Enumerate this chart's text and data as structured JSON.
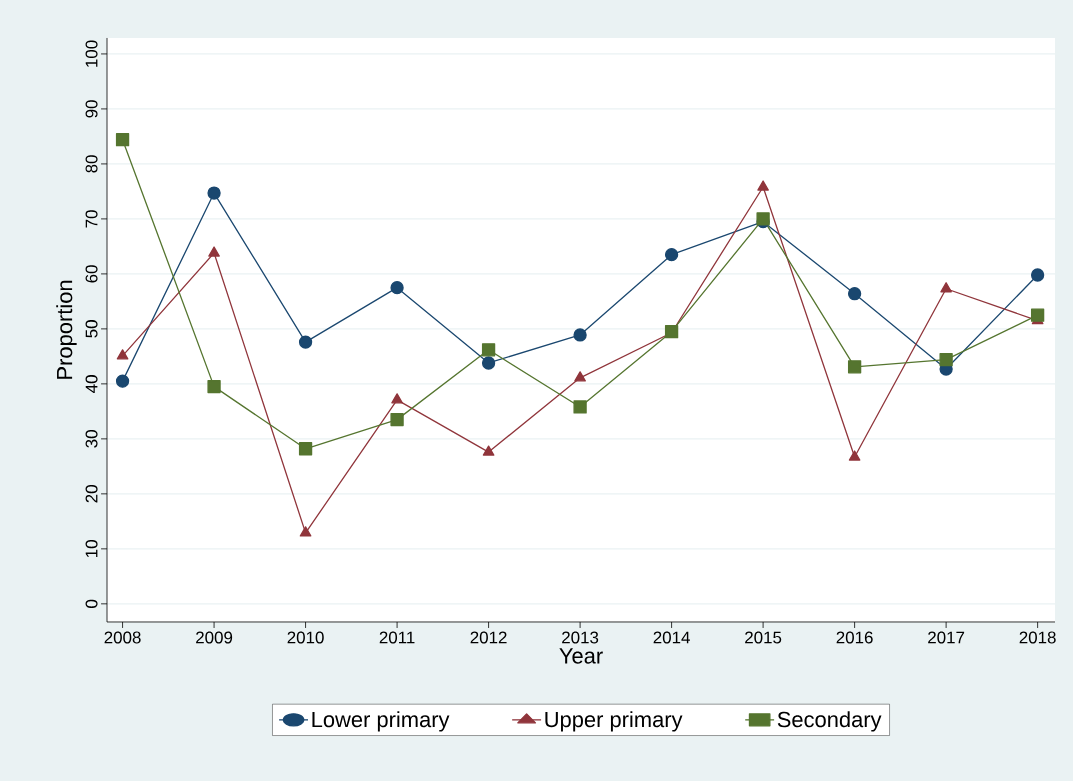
{
  "chart_data": {
    "type": "line",
    "xlabel": "Year",
    "ylabel": "Proportion",
    "x": [
      2008,
      2009,
      2010,
      2011,
      2012,
      2013,
      2014,
      2015,
      2016,
      2017,
      2018
    ],
    "series": [
      {
        "name": "Lower primary",
        "color": "#1a476f",
        "marker": "circle",
        "values": [
          40.5,
          74.7,
          47.6,
          57.5,
          43.8,
          48.9,
          63.5,
          69.5,
          56.4,
          42.7,
          59.8
        ]
      },
      {
        "name": "Upper primary",
        "color": "#90353b",
        "marker": "triangle",
        "values": [
          45.1,
          63.8,
          12.9,
          37.1,
          27.6,
          41.1,
          49.3,
          75.8,
          26.7,
          57.3,
          51.5
        ]
      },
      {
        "name": "Secondary",
        "color": "#55752f",
        "marker": "square",
        "values": [
          84.4,
          39.5,
          28.2,
          33.5,
          46.2,
          35.8,
          49.5,
          70.0,
          43.1,
          44.4,
          52.5
        ]
      }
    ],
    "xlim": [
      2007.83,
      2018.19
    ],
    "ylim": [
      -3.3,
      102.9
    ],
    "xticks": [
      2008,
      2009,
      2010,
      2011,
      2012,
      2013,
      2014,
      2015,
      2016,
      2017,
      2018
    ],
    "yticks": [
      0,
      10,
      20,
      30,
      40,
      50,
      60,
      70,
      80,
      90,
      100
    ],
    "grid": "y",
    "legend": "bottom",
    "line_style": "solid"
  }
}
